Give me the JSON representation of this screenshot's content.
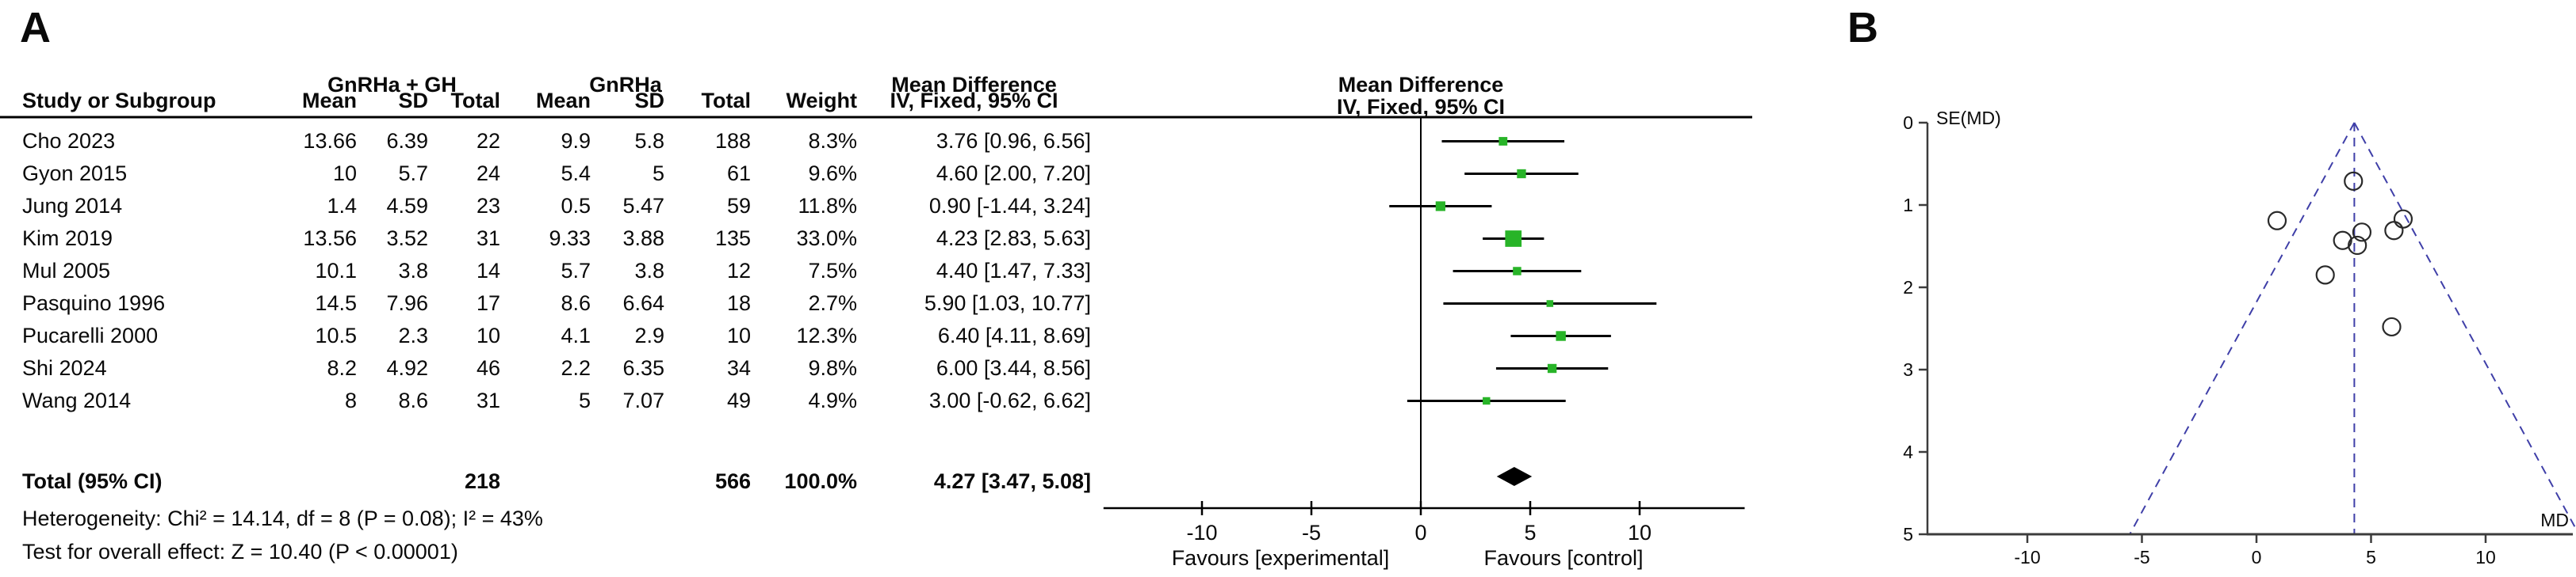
{
  "colors": {
    "square_green": "#28b428",
    "funnel_blue": "#3f3fa8",
    "line_black": "#000000",
    "axis_gray": "#3c3c3c",
    "circle_stroke": "#2a2a2a"
  },
  "panel_a": {
    "label": "A",
    "table_headers": {
      "group1": "GnRHa + GH",
      "group2": "GnRHa",
      "study": "Study or Subgroup",
      "mean": "Mean",
      "sd": "SD",
      "total": "Total",
      "weight": "Weight",
      "md_line1": "Mean Difference",
      "md_line2": "IV, Fixed, 95% CI",
      "plot_line1": "Mean Difference",
      "plot_line2": "IV, Fixed, 95% CI"
    }
  },
  "panel_b": {
    "label": "B"
  },
  "chart_data": [
    {
      "type": "forest",
      "effect_measure": "Mean Difference",
      "method": "IV, Fixed, 95% CI",
      "studies": [
        {
          "name": "Cho 2023",
          "exp_mean": "13.66",
          "exp_sd": "6.39",
          "exp_total": "22",
          "ctl_mean": "9.9",
          "ctl_sd": "5.8",
          "ctl_total": "188",
          "weight": "8.3%",
          "weight_value": 8.3,
          "md": 3.76,
          "ci_low": 0.96,
          "ci_high": 6.56,
          "ci_text": "3.76 [0.96, 6.56]"
        },
        {
          "name": "Gyon 2015",
          "exp_mean": "10",
          "exp_sd": "5.7",
          "exp_total": "24",
          "ctl_mean": "5.4",
          "ctl_sd": "5",
          "ctl_total": "61",
          "weight": "9.6%",
          "weight_value": 9.6,
          "md": 4.6,
          "ci_low": 2.0,
          "ci_high": 7.2,
          "ci_text": "4.60 [2.00, 7.20]"
        },
        {
          "name": "Jung 2014",
          "exp_mean": "1.4",
          "exp_sd": "4.59",
          "exp_total": "23",
          "ctl_mean": "0.5",
          "ctl_sd": "5.47",
          "ctl_total": "59",
          "weight": "11.8%",
          "weight_value": 11.8,
          "md": 0.9,
          "ci_low": -1.44,
          "ci_high": 3.24,
          "ci_text": "0.90 [-1.44, 3.24]"
        },
        {
          "name": "Kim 2019",
          "exp_mean": "13.56",
          "exp_sd": "3.52",
          "exp_total": "31",
          "ctl_mean": "9.33",
          "ctl_sd": "3.88",
          "ctl_total": "135",
          "weight": "33.0%",
          "weight_value": 33.0,
          "md": 4.23,
          "ci_low": 2.83,
          "ci_high": 5.63,
          "ci_text": "4.23 [2.83, 5.63]"
        },
        {
          "name": "Mul 2005",
          "exp_mean": "10.1",
          "exp_sd": "3.8",
          "exp_total": "14",
          "ctl_mean": "5.7",
          "ctl_sd": "3.8",
          "ctl_total": "12",
          "weight": "7.5%",
          "weight_value": 7.5,
          "md": 4.4,
          "ci_low": 1.47,
          "ci_high": 7.33,
          "ci_text": "4.40 [1.47, 7.33]"
        },
        {
          "name": "Pasquino 1996",
          "exp_mean": "14.5",
          "exp_sd": "7.96",
          "exp_total": "17",
          "ctl_mean": "8.6",
          "ctl_sd": "6.64",
          "ctl_total": "18",
          "weight": "2.7%",
          "weight_value": 2.7,
          "md": 5.9,
          "ci_low": 1.03,
          "ci_high": 10.77,
          "ci_text": "5.90 [1.03, 10.77]"
        },
        {
          "name": "Pucarelli 2000",
          "exp_mean": "10.5",
          "exp_sd": "2.3",
          "exp_total": "10",
          "ctl_mean": "4.1",
          "ctl_sd": "2.9",
          "ctl_total": "10",
          "weight": "12.3%",
          "weight_value": 12.3,
          "md": 6.4,
          "ci_low": 4.11,
          "ci_high": 8.69,
          "ci_text": "6.40 [4.11, 8.69]"
        },
        {
          "name": "Shi 2024",
          "exp_mean": "8.2",
          "exp_sd": "4.92",
          "exp_total": "46",
          "ctl_mean": "2.2",
          "ctl_sd": "6.35",
          "ctl_total": "34",
          "weight": "9.8%",
          "weight_value": 9.8,
          "md": 6.0,
          "ci_low": 3.44,
          "ci_high": 8.56,
          "ci_text": "6.00 [3.44, 8.56]"
        },
        {
          "name": "Wang 2014",
          "exp_mean": "8",
          "exp_sd": "8.6",
          "exp_total": "31",
          "ctl_mean": "5",
          "ctl_sd": "7.07",
          "ctl_total": "49",
          "weight": "4.9%",
          "weight_value": 4.9,
          "md": 3.0,
          "ci_low": -0.62,
          "ci_high": 6.62,
          "ci_text": "3.00 [-0.62, 6.62]"
        }
      ],
      "total": {
        "label": "Total (95% CI)",
        "exp_total": "218",
        "ctl_total": "566",
        "weight": "100.0%",
        "md": 4.27,
        "ci_low": 3.47,
        "ci_high": 5.08,
        "ci_text": "4.27 [3.47, 5.08]"
      },
      "heterogeneity": "Heterogeneity: Chi² = 14.14, df = 8 (P = 0.08); I² = 43%",
      "overall_effect": "Test for overall effect: Z = 10.40 (P < 0.00001)",
      "xticks": [
        -10,
        -5,
        0,
        5,
        10
      ],
      "xlim": [
        -14.5,
        14.8
      ],
      "favours_left": "Favours [experimental]",
      "favours_right": "Favours [control]"
    },
    {
      "type": "scatter",
      "subtype": "funnel",
      "xlabel": "MD",
      "ylabel": "SE(MD)",
      "xticks": [
        -10,
        -5,
        0,
        5,
        10
      ],
      "yticks": [
        0,
        1,
        2,
        3,
        4,
        5
      ],
      "xlim": [
        -14.4,
        13.8
      ],
      "ylim": [
        0,
        5
      ],
      "y_inverted": true,
      "center": 4.27,
      "ci_multiplier": 1.96,
      "points": [
        {
          "study": "Kim 2019",
          "md": 4.23,
          "se": 0.71
        },
        {
          "study": "Pucarelli 2000",
          "md": 6.4,
          "se": 1.17
        },
        {
          "study": "Jung 2014",
          "md": 0.9,
          "se": 1.19
        },
        {
          "study": "Shi 2024",
          "md": 6.0,
          "se": 1.31
        },
        {
          "study": "Gyon 2015",
          "md": 4.6,
          "se": 1.33
        },
        {
          "study": "Cho 2023",
          "md": 3.76,
          "se": 1.43
        },
        {
          "study": "Mul 2005",
          "md": 4.4,
          "se": 1.49
        },
        {
          "study": "Wang 2014",
          "md": 3.0,
          "se": 1.85
        },
        {
          "study": "Pasquino 1996",
          "md": 5.9,
          "se": 2.48
        }
      ]
    }
  ]
}
